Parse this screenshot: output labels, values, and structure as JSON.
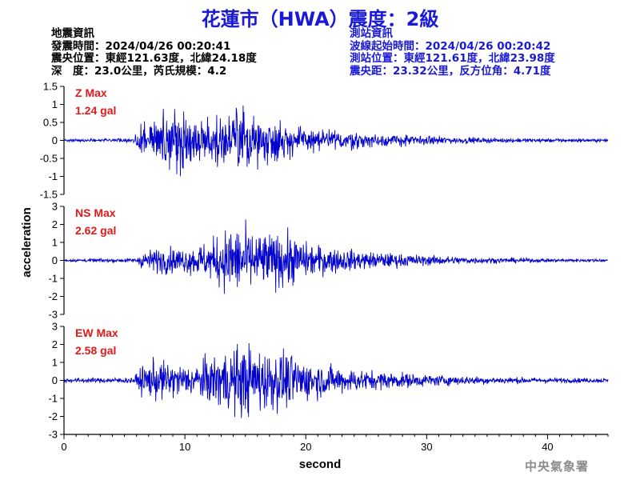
{
  "title": "花蓮市（HWA）震度：2級",
  "quake_info": {
    "heading": "地震資訊",
    "origin_time": "發震時間：2024/04/26 00:20:41",
    "epicenter": "震央位置：東經121.63度，北緯24.18度",
    "depth_mag": "深　度：23.0公里，芮氏規模：4.2"
  },
  "station_info": {
    "heading": "測站資訊",
    "wave_start": "波線起始時間：2024/04/26 00:20:42",
    "location": "測站位置：東經121.61度，北緯23.98度",
    "distance": "震央距：23.32公里，反方位角：4.71度"
  },
  "footer": "中央氣象署",
  "colors": {
    "title": "#1a1ad6",
    "trace": "#0000cc",
    "max_label": "#e0191a",
    "axis": "#000000"
  },
  "chart_data": {
    "type": "line",
    "xlabel": "second",
    "ylabel": "acceleration",
    "xlim": [
      0,
      45
    ],
    "x_ticks": [
      0,
      10,
      20,
      30,
      40
    ],
    "grid": false,
    "panels": [
      {
        "name": "Z",
        "max_label": "Z Max",
        "max_value": "1.24 gal",
        "ylim": [
          -1.5,
          1.5
        ],
        "y_ticks": [
          1.5,
          1,
          0.5,
          0,
          -0.5,
          -1,
          -1.5
        ],
        "y_tick_labels": [
          "1.5",
          "1",
          "0.5",
          "0",
          "-0.5",
          "-1",
          "-1.5"
        ],
        "envelope": [
          [
            0,
            0.05
          ],
          [
            5.8,
            0.06
          ],
          [
            6.2,
            0.5
          ],
          [
            7,
            0.75
          ],
          [
            8.5,
            1.0
          ],
          [
            9.5,
            0.95
          ],
          [
            10.5,
            0.8
          ],
          [
            12,
            0.7
          ],
          [
            13.5,
            0.85
          ],
          [
            14.3,
            1.2
          ],
          [
            15,
            0.95
          ],
          [
            17,
            0.7
          ],
          [
            20,
            0.45
          ],
          [
            25,
            0.25
          ],
          [
            30,
            0.15
          ],
          [
            35,
            0.08
          ],
          [
            45,
            0.05
          ]
        ]
      },
      {
        "name": "NS",
        "max_label": "NS Max",
        "max_value": "2.62 gal",
        "ylim": [
          -3,
          3
        ],
        "y_ticks": [
          3,
          2,
          1,
          0,
          -1,
          -2,
          -3
        ],
        "y_tick_labels": [
          "3",
          "2",
          "1",
          "0",
          "-1",
          "-2",
          "-3"
        ],
        "envelope": [
          [
            0,
            0.1
          ],
          [
            6,
            0.15
          ],
          [
            6.5,
            0.6
          ],
          [
            8,
            0.9
          ],
          [
            10,
            0.85
          ],
          [
            12,
            1.3
          ],
          [
            13.5,
            2.2
          ],
          [
            14.2,
            2.5
          ],
          [
            15.5,
            2.0
          ],
          [
            17.5,
            1.8
          ],
          [
            18.5,
            1.9
          ],
          [
            20,
            1.2
          ],
          [
            22,
            0.9
          ],
          [
            25,
            0.6
          ],
          [
            30,
            0.35
          ],
          [
            35,
            0.2
          ],
          [
            40,
            0.12
          ],
          [
            45,
            0.1
          ]
        ]
      },
      {
        "name": "EW",
        "max_label": "EW Max",
        "max_value": "2.58 gal",
        "ylim": [
          -3,
          3
        ],
        "y_ticks": [
          3,
          2,
          1,
          0,
          -1,
          -2,
          -3
        ],
        "y_tick_labels": [
          "3",
          "2",
          "1",
          "0",
          "-1",
          "-2",
          "-3"
        ],
        "envelope": [
          [
            0,
            0.15
          ],
          [
            5.8,
            0.2
          ],
          [
            6.3,
            0.9
          ],
          [
            7.5,
            1.4
          ],
          [
            9,
            1.2
          ],
          [
            10.5,
            1.0
          ],
          [
            12,
            1.6
          ],
          [
            13.5,
            2.2
          ],
          [
            14.8,
            2.5
          ],
          [
            16.5,
            2.2
          ],
          [
            18,
            2.0
          ],
          [
            20,
            1.4
          ],
          [
            22,
            1.0
          ],
          [
            25,
            0.7
          ],
          [
            30,
            0.4
          ],
          [
            35,
            0.25
          ],
          [
            40,
            0.18
          ],
          [
            45,
            0.15
          ]
        ]
      }
    ]
  }
}
